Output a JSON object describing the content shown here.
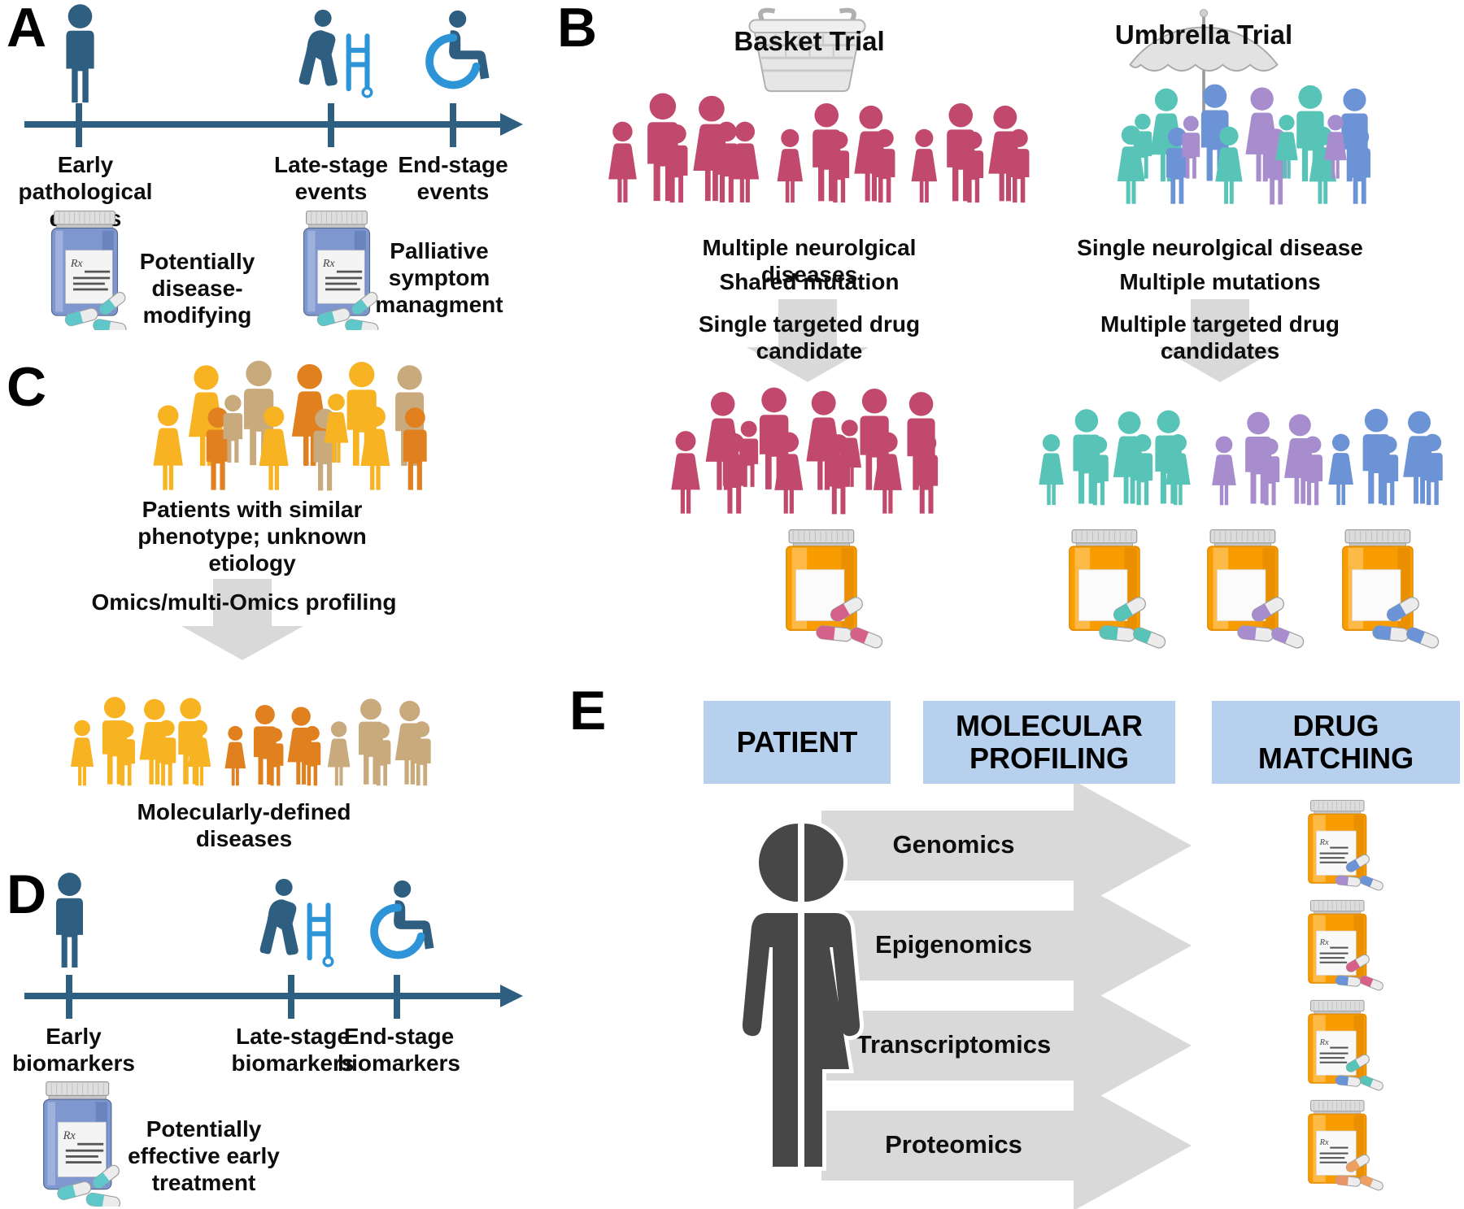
{
  "colors": {
    "steel": "#2e5f80",
    "accent_blue": "#2d94d8",
    "crimson": "#c2496e",
    "teal": "#58c4b8",
    "periwinkle": "#6b93d6",
    "purple": "#a78cce",
    "yellow": "#f7b322",
    "orange": "#e0801f",
    "tan": "#c8aa7d",
    "arrow_gray": "#d9d9d9",
    "header_blue": "#b6d0ee",
    "silhouette_gray": "#474747",
    "bottle_orange": "#f89c00",
    "bottle_blue": "#7e97cf",
    "pill_teal": "#5fc6ca",
    "pill_pink": "#d5608a"
  },
  "panel_a": {
    "label": "A",
    "milestones": [
      {
        "label": "Early pathological\nevents"
      },
      {
        "label": "Late-stage\nevents"
      },
      {
        "label": "End-stage\nevents"
      }
    ],
    "annotations": [
      {
        "label": "Potentially\ndisease-modifying"
      },
      {
        "label": "Palliative\nsymptom\nmanagment"
      }
    ]
  },
  "panel_b": {
    "label": "B",
    "basket": {
      "title": "Basket Trial",
      "line1": "Multiple neurolgical diseases",
      "line2": "Shared mutation",
      "arrow_label": "Single targeted drug\ncandidate"
    },
    "umbrella": {
      "title": "Umbrella Trial",
      "line1": "Single neurolgical disease",
      "line2": "Multiple mutations",
      "arrow_label": "Multiple targeted drug\ncandidates"
    }
  },
  "panel_c": {
    "label": "C",
    "caption_top": "Patients with similar\nphenotype; unknown etiology",
    "arrow_label": "Omics/multi-Omics profiling",
    "caption_bottom": "Molecularly-defined diseases"
  },
  "panel_d": {
    "label": "D",
    "milestones": [
      {
        "label": "Early\nbiomarkers"
      },
      {
        "label": "Late-stage\nbiomarkers"
      },
      {
        "label": "End-stage\nbiomarkers"
      }
    ],
    "annotation": "Potentially\neffective early\ntreatment"
  },
  "panel_e": {
    "label": "E",
    "headers": [
      "PATIENT",
      "MOLECULAR\nPROFILING",
      "DRUG\nMATCHING"
    ],
    "rows": [
      "Genomics",
      "Epigenomics",
      "Transcriptomics",
      "Proteomics"
    ],
    "rx": "Rx"
  }
}
